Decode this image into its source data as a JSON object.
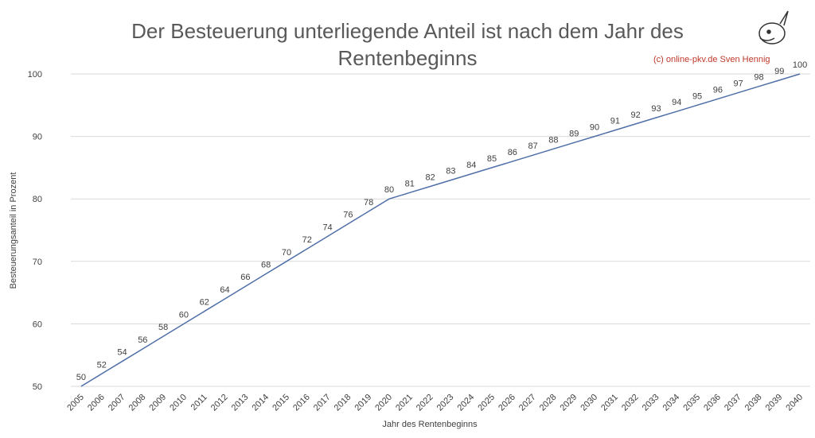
{
  "chart_data": {
    "type": "line",
    "title": "Der Besteuerung unterliegende Anteil ist nach dem Jahr des Rentenbeginns",
    "credit": "(c) online-pkv.de Sven Hennig",
    "x_label": "Jahr des Rentenbeginns",
    "y_label": "Besteuerungsanteil in Prozent",
    "categories": [
      "2005",
      "2006",
      "2007",
      "2008",
      "2009",
      "2010",
      "2011",
      "2012",
      "2013",
      "2014",
      "2015",
      "2016",
      "2017",
      "2018",
      "2019",
      "2020",
      "2021",
      "2022",
      "2023",
      "2024",
      "2025",
      "2026",
      "2027",
      "2028",
      "2029",
      "2030",
      "2031",
      "2032",
      "2033",
      "2034",
      "2035",
      "2036",
      "2037",
      "2038",
      "2039",
      "2040"
    ],
    "values": [
      50,
      52,
      54,
      56,
      58,
      60,
      62,
      64,
      66,
      68,
      70,
      72,
      74,
      76,
      78,
      80,
      81,
      82,
      83,
      84,
      85,
      86,
      87,
      88,
      89,
      90,
      91,
      92,
      93,
      94,
      95,
      96,
      97,
      98,
      99,
      100
    ],
    "color": "#4f6fa8",
    "ylim": [
      50,
      100
    ],
    "yticks": [
      50,
      60,
      70,
      80,
      90,
      100
    ],
    "grid": true
  }
}
